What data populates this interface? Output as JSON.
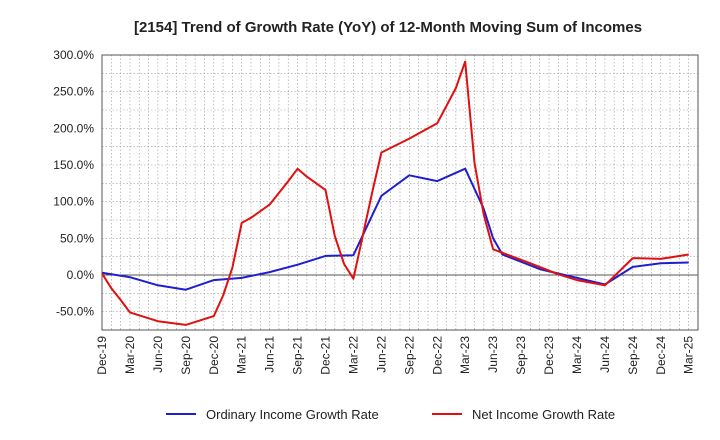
{
  "chart_data": {
    "type": "line",
    "title": "[2154]  Trend of Growth Rate (YoY) of 12-Month Moving Sum of Incomes",
    "xlabel": "",
    "ylabel": "",
    "y_unit_suffix": "%",
    "ylim": [
      -75,
      300
    ],
    "y_ticks": [
      300,
      250,
      200,
      150,
      100,
      50,
      0,
      -50
    ],
    "y_tick_labels": [
      "300.0%",
      "250.0%",
      "200.0%",
      "150.0%",
      "100.0%",
      "50.0%",
      "0.0%",
      "-50.0%"
    ],
    "x_tick_labels": [
      "Dec-19",
      "Mar-20",
      "Jun-20",
      "Sep-20",
      "Dec-20",
      "Mar-21",
      "Jun-21",
      "Sep-21",
      "Dec-21",
      "Mar-22",
      "Jun-22",
      "Sep-22",
      "Dec-22",
      "Mar-23",
      "Jun-23",
      "Sep-23",
      "Dec-23",
      "Mar-24",
      "Jun-24",
      "Sep-24",
      "Dec-24",
      "Mar-25"
    ],
    "x_months_count": 64,
    "grid": true,
    "legend_position": "bottom",
    "series": [
      {
        "name": "Ordinary Income Growth Rate",
        "color": "#1f1fd0",
        "points": [
          [
            0,
            3
          ],
          [
            3,
            -3
          ],
          [
            6,
            -14
          ],
          [
            9,
            -20
          ],
          [
            12,
            -7
          ],
          [
            15,
            -4
          ],
          [
            18,
            4
          ],
          [
            21,
            14
          ],
          [
            24,
            26
          ],
          [
            27,
            27
          ],
          [
            30,
            108
          ],
          [
            33,
            136
          ],
          [
            36,
            128
          ],
          [
            39,
            145
          ],
          [
            41,
            90
          ],
          [
            42,
            50
          ],
          [
            43,
            28
          ],
          [
            47,
            8
          ],
          [
            51,
            -4
          ],
          [
            54,
            -13
          ],
          [
            57,
            11
          ],
          [
            60,
            16
          ],
          [
            63,
            17
          ]
        ]
      },
      {
        "name": "Net Income Growth Rate",
        "color": "#e01010",
        "points": [
          [
            0,
            2
          ],
          [
            1,
            -18
          ],
          [
            2,
            -34
          ],
          [
            3,
            -51
          ],
          [
            6,
            -63
          ],
          [
            9,
            -68
          ],
          [
            12,
            -56
          ],
          [
            13,
            -28
          ],
          [
            14,
            10
          ],
          [
            15,
            71
          ],
          [
            16,
            78
          ],
          [
            18,
            96
          ],
          [
            20,
            128
          ],
          [
            21,
            145
          ],
          [
            22,
            134
          ],
          [
            24,
            116
          ],
          [
            25,
            53
          ],
          [
            26,
            15
          ],
          [
            27,
            -5
          ],
          [
            29,
            112
          ],
          [
            30,
            167
          ],
          [
            33,
            186
          ],
          [
            36,
            207
          ],
          [
            38,
            255
          ],
          [
            39,
            291
          ],
          [
            40,
            153
          ],
          [
            41,
            82
          ],
          [
            42,
            35
          ],
          [
            46,
            16
          ],
          [
            49,
            1
          ],
          [
            51,
            -7
          ],
          [
            54,
            -14
          ],
          [
            57,
            23
          ],
          [
            60,
            22
          ],
          [
            63,
            28
          ]
        ]
      }
    ]
  }
}
